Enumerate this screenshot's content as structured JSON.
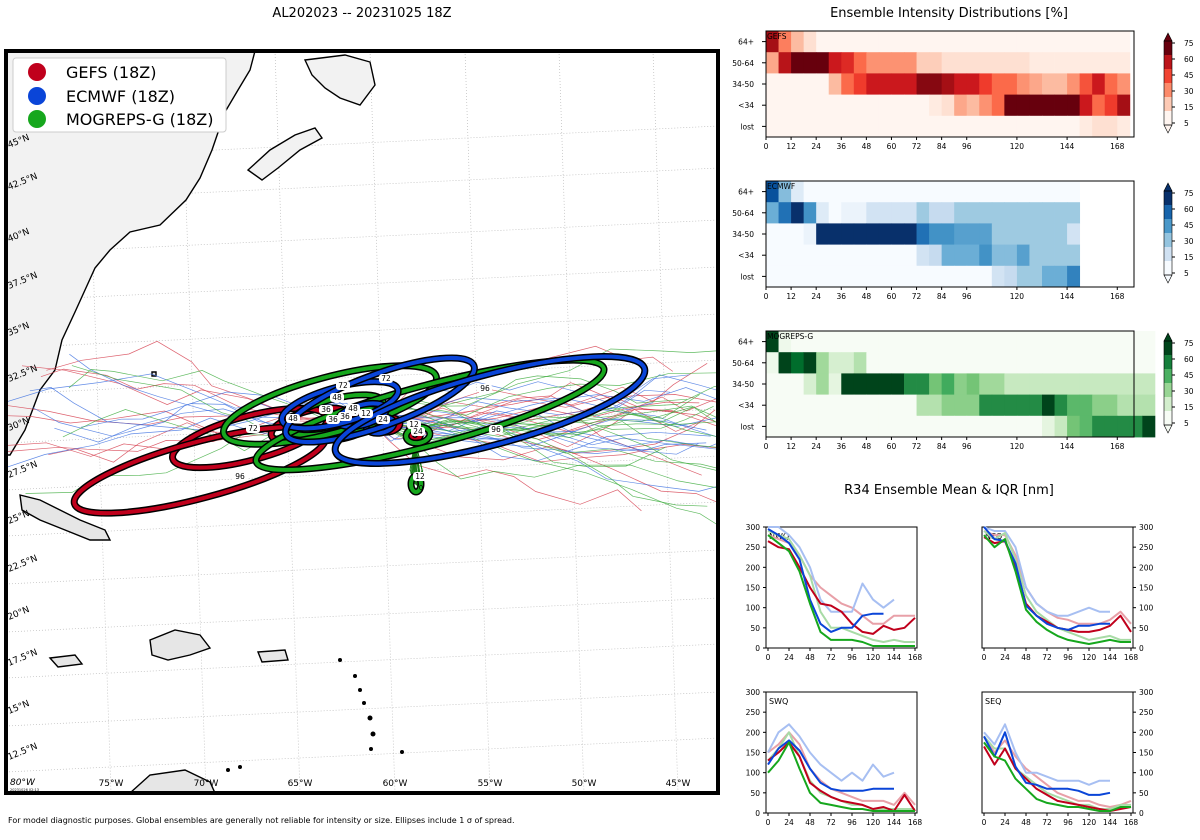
{
  "map": {
    "title": "AL202023 -- 20231025 18Z",
    "lat_labels": [
      "45°N",
      "42.5°N",
      "40°N",
      "37.5°N",
      "35°N",
      "32.5°N",
      "30°N",
      "27.5°N",
      "25°N",
      "22.5°N",
      "20°N",
      "17.5°N",
      "15°N",
      "12.5°N"
    ],
    "lon_labels": [
      "75°W",
      "70°W",
      "65°W",
      "60°W",
      "55°W",
      "50°W",
      "45°W"
    ],
    "corner_label": "80°W",
    "stamp": "20231026 02:13",
    "legend": [
      {
        "name": "GEFS (18Z)",
        "color": "#c0001c"
      },
      {
        "name": "ECMWF (18Z)",
        "color": "#0a45d8"
      },
      {
        "name": "MOGREPS-G (18Z)",
        "color": "#16a71d"
      }
    ],
    "ellipse_labels": {
      "gefs": [
        "12",
        "24",
        "36",
        "48",
        "72",
        "96"
      ],
      "ecmwf": [
        "12",
        "24",
        "36",
        "48",
        "72",
        "96"
      ],
      "mogreps": [
        "0",
        "12",
        "24",
        "36",
        "48",
        "72",
        "96"
      ]
    },
    "footnote": "For model diagnostic purposes. Global ensembles are generally not reliable for intensity or size. Ellipses include 1 σ of spread."
  },
  "intensity": {
    "title": "Ensemble Intensity Distributions [%]",
    "categories": [
      "64+",
      "50-64",
      "34-50",
      "<34",
      "lost"
    ],
    "x_ticks": [
      "0",
      "12",
      "24",
      "36",
      "48",
      "60",
      "72",
      "84",
      "96",
      "120",
      "144",
      "168"
    ],
    "colorbar_ticks": [
      "75",
      "60",
      "45",
      "30",
      "15",
      "5"
    ],
    "panels": [
      {
        "name": "GEFS",
        "colormap": "reds",
        "values": [
          [
            70,
            35,
            20,
            10,
            0,
            0,
            0,
            0,
            0,
            0,
            0,
            0,
            0,
            0,
            0,
            0,
            0,
            0,
            0,
            0,
            0,
            0,
            0,
            0,
            0,
            0,
            0,
            0,
            0
          ],
          [
            25,
            65,
            80,
            80,
            80,
            60,
            55,
            40,
            30,
            30,
            30,
            30,
            15,
            15,
            10,
            10,
            10,
            10,
            10,
            10,
            10,
            5,
            5,
            5,
            5,
            5,
            5,
            5,
            5
          ],
          [
            0,
            0,
            0,
            0,
            0,
            20,
            40,
            50,
            60,
            60,
            60,
            60,
            75,
            75,
            70,
            60,
            60,
            50,
            40,
            40,
            30,
            25,
            20,
            20,
            30,
            45,
            60,
            40,
            30
          ],
          [
            0,
            0,
            0,
            0,
            0,
            0,
            0,
            0,
            0,
            0,
            0,
            0,
            0,
            5,
            10,
            25,
            20,
            30,
            40,
            80,
            80,
            80,
            80,
            80,
            80,
            60,
            40,
            50,
            70
          ],
          [
            0,
            0,
            0,
            0,
            0,
            0,
            0,
            0,
            0,
            0,
            0,
            0,
            0,
            0,
            0,
            0,
            0,
            0,
            0,
            0,
            0,
            0,
            0,
            0,
            0,
            5,
            10,
            10,
            5
          ]
        ]
      },
      {
        "name": "ECMWF",
        "colormap": "blues",
        "values": [
          [
            70,
            35,
            10,
            0,
            0,
            0,
            0,
            0,
            0,
            0,
            0,
            0,
            0,
            0,
            0,
            0,
            0,
            0,
            0,
            0,
            0,
            0,
            0,
            0,
            0
          ],
          [
            40,
            60,
            80,
            50,
            10,
            0,
            5,
            5,
            15,
            15,
            15,
            15,
            30,
            20,
            20,
            30,
            30,
            30,
            30,
            30,
            30,
            30,
            30,
            30,
            30
          ],
          [
            0,
            0,
            0,
            5,
            80,
            80,
            80,
            80,
            80,
            80,
            80,
            80,
            60,
            50,
            50,
            45,
            45,
            45,
            30,
            30,
            30,
            30,
            30,
            30,
            15
          ],
          [
            0,
            0,
            0,
            0,
            0,
            0,
            0,
            0,
            0,
            0,
            0,
            0,
            15,
            20,
            40,
            40,
            40,
            50,
            35,
            35,
            45,
            30,
            30,
            30,
            30
          ],
          [
            0,
            0,
            0,
            0,
            0,
            0,
            0,
            0,
            0,
            0,
            0,
            0,
            0,
            0,
            0,
            0,
            0,
            0,
            15,
            20,
            30,
            30,
            40,
            40,
            55
          ]
        ]
      },
      {
        "name": "MOGREPS-G",
        "colormap": "greens",
        "values": [
          [
            80,
            5,
            0,
            0,
            0,
            0,
            0,
            0,
            0,
            0,
            0,
            0,
            0,
            0,
            0,
            0,
            0,
            0,
            0,
            0,
            0,
            0,
            0,
            0,
            0,
            0,
            0,
            0,
            0,
            0,
            0
          ],
          [
            5,
            80,
            70,
            80,
            30,
            15,
            15,
            25,
            0,
            0,
            0,
            0,
            0,
            0,
            0,
            0,
            0,
            0,
            0,
            0,
            0,
            0,
            0,
            0,
            0,
            0,
            0,
            0,
            0,
            0,
            0
          ],
          [
            0,
            0,
            0,
            15,
            30,
            10,
            80,
            80,
            80,
            80,
            80,
            60,
            60,
            40,
            50,
            35,
            40,
            30,
            30,
            20,
            20,
            20,
            20,
            20,
            20,
            20,
            20,
            20,
            20,
            20,
            20
          ],
          [
            0,
            0,
            0,
            0,
            0,
            0,
            0,
            0,
            0,
            0,
            0,
            0,
            25,
            25,
            35,
            35,
            35,
            60,
            60,
            60,
            60,
            60,
            85,
            60,
            45,
            45,
            35,
            35,
            25,
            25,
            25
          ],
          [
            0,
            0,
            0,
            0,
            0,
            0,
            0,
            0,
            0,
            0,
            0,
            0,
            0,
            0,
            0,
            0,
            0,
            0,
            0,
            0,
            0,
            0,
            10,
            20,
            40,
            45,
            60,
            60,
            60,
            60,
            80
          ]
        ]
      }
    ]
  },
  "r34": {
    "title": "R34 Ensemble Mean & IQR [nm]",
    "x_ticks": [
      "0",
      "24",
      "48",
      "72",
      "96",
      "120",
      "144",
      "168"
    ],
    "y_ticks": [
      "0",
      "50",
      "100",
      "150",
      "200",
      "250",
      "300"
    ],
    "panels": [
      {
        "name": "NWQ",
        "x": [
          0,
          12,
          24,
          36,
          48,
          60,
          72,
          84,
          96,
          108,
          120,
          132,
          144,
          156,
          168
        ],
        "gefs": [
          265,
          250,
          245,
          200,
          150,
          110,
          105,
          90,
          60,
          40,
          35,
          55,
          45,
          50,
          75
        ],
        "ecmwf": [
          295,
          280,
          260,
          220,
          120,
          60,
          40,
          50,
          50,
          80,
          85,
          85,
          null,
          null,
          null
        ],
        "mogreps": [
          280,
          260,
          240,
          190,
          110,
          40,
          20,
          20,
          20,
          15,
          5,
          5,
          5,
          5,
          5
        ],
        "gefs_iqr_hi": [
          280,
          270,
          260,
          230,
          180,
          150,
          130,
          110,
          100,
          80,
          60,
          60,
          80,
          80,
          80
        ],
        "ecmwf_iqr_hi": [
          300,
          300,
          280,
          250,
          200,
          120,
          90,
          90,
          90,
          160,
          120,
          100,
          120,
          null,
          null
        ],
        "mogreps_iqr_hi": [
          290,
          280,
          270,
          230,
          180,
          90,
          50,
          50,
          40,
          30,
          20,
          15,
          20,
          15,
          15
        ]
      },
      {
        "name": "NEQ",
        "x": [
          0,
          12,
          24,
          36,
          48,
          60,
          72,
          84,
          96,
          108,
          120,
          132,
          144,
          156,
          168
        ],
        "gefs": [
          275,
          260,
          265,
          200,
          110,
          80,
          65,
          50,
          45,
          40,
          40,
          45,
          55,
          80,
          40
        ],
        "ecmwf": [
          300,
          270,
          265,
          210,
          105,
          80,
          60,
          50,
          45,
          55,
          55,
          60,
          60,
          null,
          null
        ],
        "mogreps": [
          280,
          250,
          270,
          190,
          95,
          65,
          45,
          30,
          20,
          15,
          10,
          15,
          20,
          15,
          15
        ],
        "gefs_iqr_hi": [
          290,
          280,
          280,
          230,
          150,
          110,
          90,
          75,
          70,
          60,
          60,
          60,
          70,
          90,
          60
        ],
        "ecmwf_iqr_hi": [
          300,
          290,
          290,
          250,
          150,
          110,
          90,
          80,
          80,
          90,
          100,
          90,
          90,
          null,
          null
        ],
        "mogreps_iqr_hi": [
          290,
          270,
          285,
          220,
          130,
          90,
          70,
          50,
          40,
          30,
          20,
          25,
          30,
          20,
          20
        ]
      },
      {
        "name": "SWQ",
        "x": [
          0,
          12,
          24,
          36,
          48,
          60,
          72,
          84,
          96,
          108,
          120,
          132,
          144,
          156,
          168
        ],
        "gefs": [
          130,
          150,
          175,
          140,
          75,
          55,
          40,
          30,
          25,
          20,
          10,
          15,
          5,
          45,
          5
        ],
        "ecmwf": [
          120,
          160,
          180,
          155,
          110,
          75,
          60,
          55,
          55,
          55,
          60,
          60,
          60,
          null,
          null
        ],
        "mogreps": [
          100,
          130,
          175,
          110,
          50,
          25,
          20,
          15,
          10,
          10,
          5,
          5,
          5,
          5,
          5
        ],
        "gefs_iqr_hi": [
          150,
          170,
          200,
          170,
          110,
          80,
          60,
          50,
          40,
          30,
          30,
          30,
          20,
          50,
          20
        ],
        "ecmwf_iqr_hi": [
          150,
          200,
          220,
          190,
          150,
          120,
          100,
          80,
          100,
          80,
          120,
          90,
          100,
          null,
          null
        ],
        "mogreps_iqr_hi": [
          130,
          160,
          200,
          140,
          80,
          50,
          40,
          30,
          20,
          20,
          10,
          10,
          10,
          10,
          10
        ]
      },
      {
        "name": "SEQ",
        "x": [
          0,
          12,
          24,
          36,
          48,
          60,
          72,
          84,
          96,
          108,
          120,
          132,
          144,
          156,
          168
        ],
        "gefs": [
          165,
          120,
          160,
          110,
          85,
          60,
          45,
          30,
          25,
          20,
          15,
          10,
          5,
          10,
          15
        ],
        "ecmwf": [
          190,
          140,
          200,
          115,
          75,
          70,
          60,
          60,
          60,
          55,
          45,
          45,
          50,
          null,
          null
        ],
        "mogreps": [
          175,
          140,
          130,
          85,
          60,
          35,
          25,
          20,
          15,
          15,
          10,
          5,
          5,
          15,
          15
        ],
        "gefs_iqr_hi": [
          190,
          150,
          180,
          140,
          110,
          90,
          70,
          50,
          40,
          30,
          30,
          20,
          15,
          20,
          30
        ],
        "ecmwf_iqr_hi": [
          200,
          170,
          220,
          150,
          100,
          100,
          90,
          80,
          80,
          80,
          70,
          80,
          80,
          null,
          null
        ],
        "mogreps_iqr_hi": [
          190,
          160,
          160,
          110,
          90,
          70,
          50,
          40,
          30,
          20,
          20,
          10,
          10,
          20,
          20
        ]
      }
    ]
  }
}
